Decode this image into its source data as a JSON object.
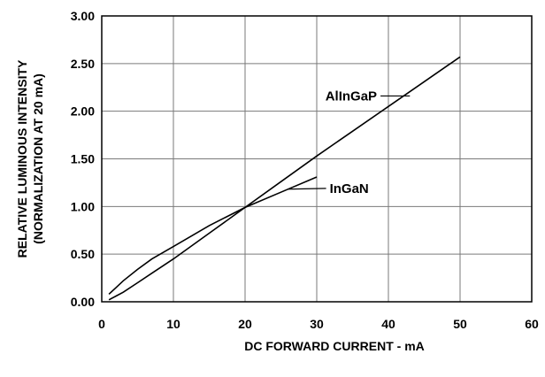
{
  "chart_data": {
    "type": "line",
    "xlabel": "DC FORWARD CURRENT - mA",
    "ylabel": [
      "RELATIVE LUMINOUS INTENSITY",
      "(NORMALIZATION AT 20 mA)"
    ],
    "xlim": [
      0,
      60
    ],
    "ylim": [
      0,
      3.0
    ],
    "x_ticks": [
      "0",
      "10",
      "20",
      "30",
      "40",
      "50",
      "60"
    ],
    "y_ticks": [
      "0.00",
      "0.50",
      "1.00",
      "1.50",
      "2.00",
      "2.50",
      "3.00"
    ],
    "grid": true,
    "series": [
      {
        "name": "AlInGaP",
        "x": [
          1,
          2,
          3,
          5,
          7,
          10,
          15,
          20,
          25,
          30,
          35,
          40,
          45,
          50
        ],
        "y": [
          0.02,
          0.06,
          0.1,
          0.2,
          0.3,
          0.45,
          0.72,
          0.99,
          1.26,
          1.53,
          1.79,
          2.05,
          2.31,
          2.57
        ]
      },
      {
        "name": "InGaN",
        "x": [
          1,
          2,
          3,
          5,
          7,
          10,
          15,
          20,
          25,
          30
        ],
        "y": [
          0.08,
          0.15,
          0.22,
          0.34,
          0.45,
          0.58,
          0.8,
          0.99,
          1.15,
          1.31
        ]
      }
    ],
    "annotations": [
      {
        "text": "AlInGaP",
        "series": 0,
        "at_x": 43,
        "label_x": 31.2,
        "label_y": 2.16
      },
      {
        "text": "InGaN",
        "series": 1,
        "at_x": 26,
        "label_x": 31.8,
        "label_y": 1.19
      }
    ]
  }
}
